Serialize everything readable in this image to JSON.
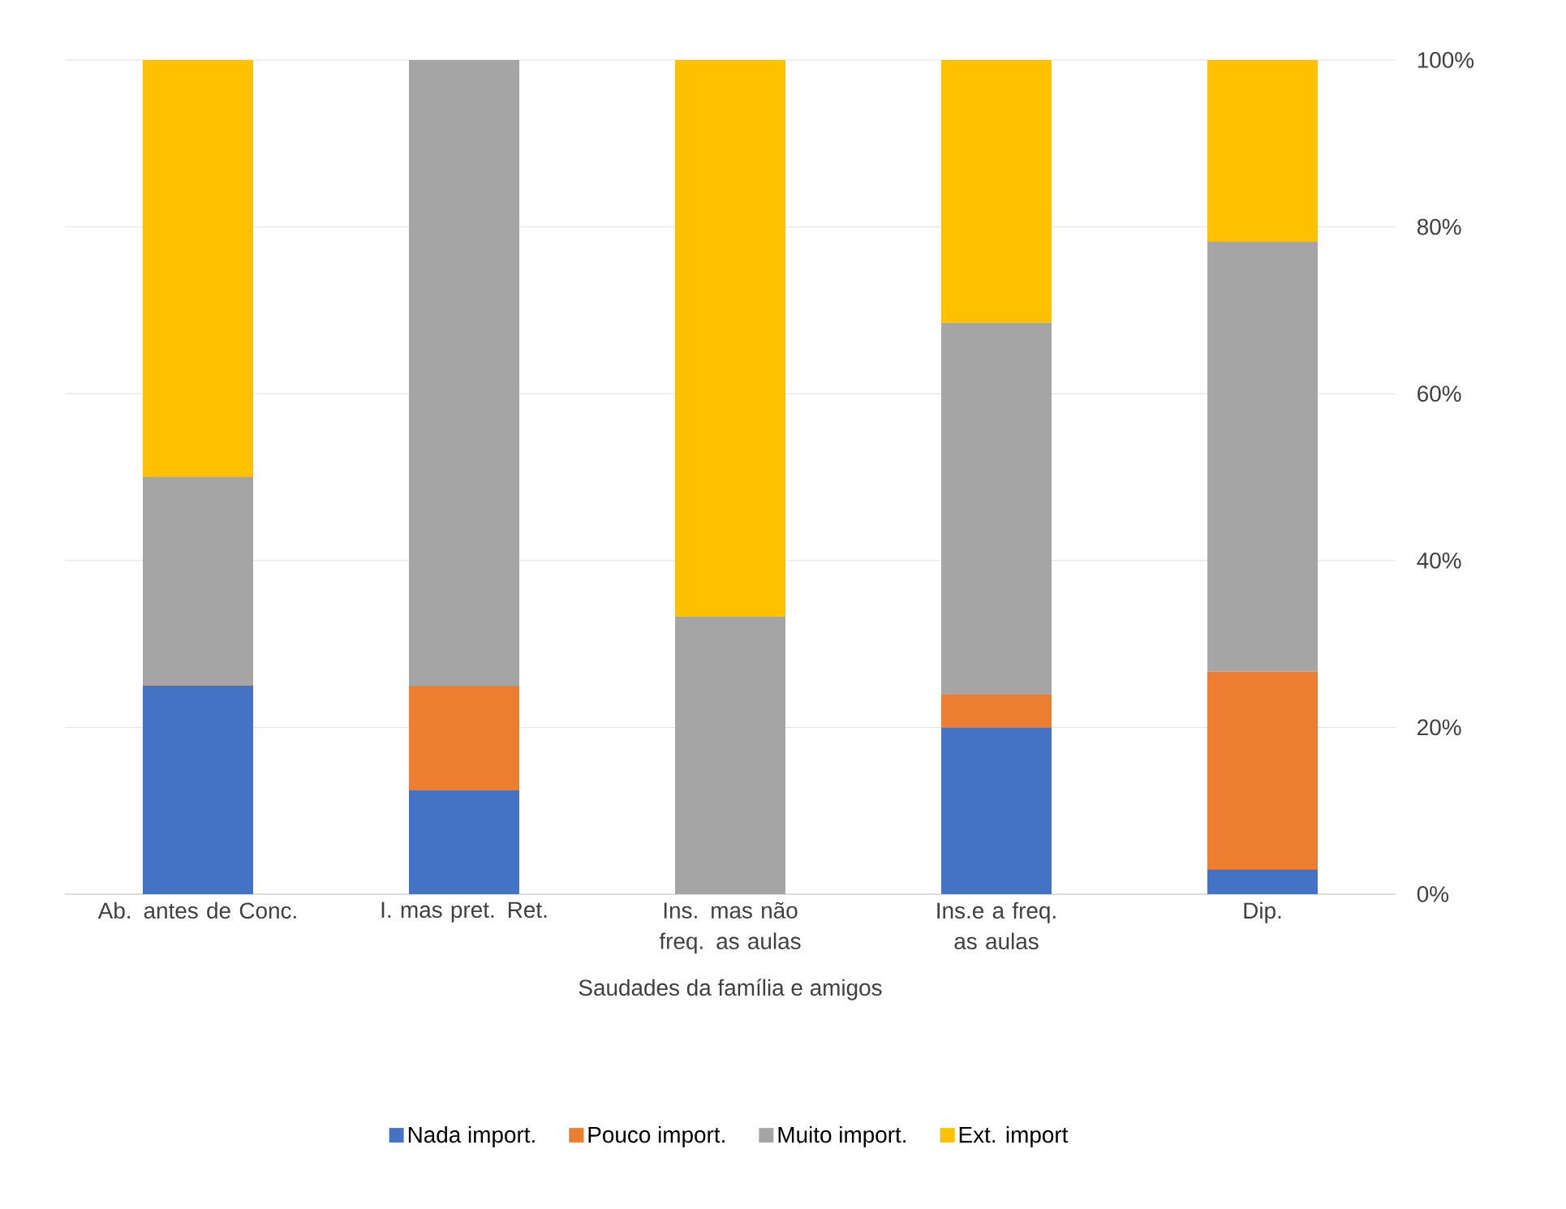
{
  "chart_data": {
    "type": "bar",
    "stacked": true,
    "xlabel": "Saudades da família e amigos",
    "categories": [
      "Ab. antes de Conc.",
      "I. mas pret. Ret.",
      "Ins. mas não freq. as aulas",
      "Ins.e a freq. as aulas",
      "Dip."
    ],
    "series": [
      {
        "name": "Nada import.",
        "color": "#4472c4",
        "values": [
          25,
          12.5,
          0,
          20,
          3
        ]
      },
      {
        "name": "Pouco import.",
        "color": "#ed7d31",
        "values": [
          0,
          12.5,
          0,
          4,
          23.7
        ]
      },
      {
        "name": "Muito import.",
        "color": "#a5a5a5",
        "values": [
          25,
          75,
          33.3,
          44.5,
          51.5
        ]
      },
      {
        "name": "Ext. import",
        "color": "#ffc000",
        "values": [
          50,
          0,
          66.7,
          31.5,
          21.8
        ]
      }
    ],
    "ylim": [
      0,
      100
    ],
    "yticks": [
      {
        "value": 0,
        "label": "0%"
      },
      {
        "value": 20,
        "label": "20%"
      },
      {
        "value": 40,
        "label": "40%"
      },
      {
        "value": 60,
        "label": "60%"
      },
      {
        "value": 80,
        "label": "80%"
      },
      {
        "value": 100,
        "label": "100%"
      }
    ],
    "grid": "y",
    "legend": "bottom"
  }
}
